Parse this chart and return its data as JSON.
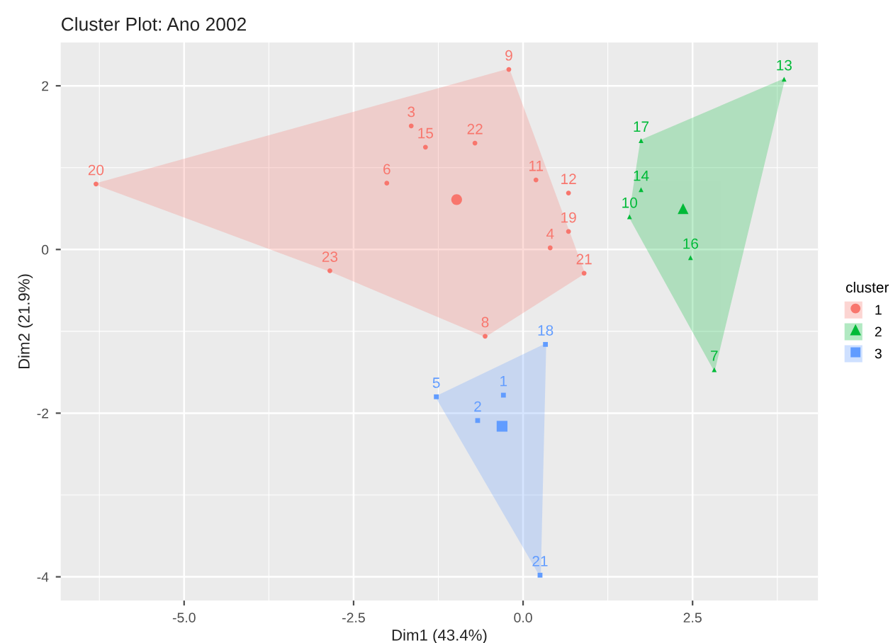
{
  "chart_data": {
    "type": "scatter",
    "title": "Cluster Plot: Ano 2002",
    "xlabel": "Dim1 (43.4%)",
    "ylabel": "Dim2 (21.9%)",
    "legend_title": "cluster",
    "legend": "right",
    "grid": true,
    "xlim": [
      -6.82,
      4.35
    ],
    "ylim": [
      -4.29,
      2.53
    ],
    "xticks": [
      {
        "value": -5,
        "label": "-5.0"
      },
      {
        "value": -2.5,
        "label": "-2.5"
      },
      {
        "value": 0,
        "label": "0.0"
      },
      {
        "value": 2.5,
        "label": "2.5"
      }
    ],
    "yticks": [
      -4,
      -2,
      0,
      2
    ],
    "series": [
      {
        "name": "1",
        "color": "#f8766d",
        "marker": "circle",
        "x": [
          -6.3,
          -2.85,
          -2.01,
          -1.65,
          -1.44,
          -0.71,
          -0.21,
          0.19,
          0.67,
          0.67,
          0.4,
          0.9,
          -0.56
        ],
        "values": [
          0.8,
          -0.26,
          0.81,
          1.51,
          1.25,
          1.3,
          2.2,
          0.85,
          0.69,
          0.22,
          0.02,
          -0.29,
          -1.06
        ]
      },
      {
        "name": "2",
        "color": "#00ba38",
        "marker": "triangle",
        "x": [
          1.74,
          3.85,
          1.74,
          1.57,
          2.47,
          2.82
        ],
        "values": [
          1.33,
          2.08,
          0.73,
          0.4,
          -0.1,
          -1.47
        ]
      },
      {
        "name": "3",
        "color": "#619cff",
        "marker": "square",
        "x": [
          0.33,
          -1.28,
          -0.29,
          -0.67,
          0.25
        ],
        "values": [
          -1.16,
          -1.8,
          -1.78,
          -2.09,
          -3.98
        ]
      },
      {
        "type": "area",
        "color": "#f8766d",
        "x": [
          -6.3,
          -0.21,
          0.9,
          -0.56,
          -2.85,
          -6.3
        ],
        "values": [
          0.8,
          2.2,
          -0.29,
          -1.06,
          -0.26,
          0.8
        ]
      },
      {
        "type": "area",
        "color": "#00ba38",
        "x": [
          1.74,
          3.85,
          2.82,
          1.57,
          1.74
        ],
        "values": [
          1.33,
          2.08,
          -1.47,
          0.4,
          1.33
        ]
      },
      {
        "type": "area",
        "color": "#619cff",
        "x": [
          0.33,
          0.25,
          -1.28,
          0.33
        ],
        "values": [
          -1.16,
          -3.98,
          -1.8,
          -1.16
        ]
      },
      {
        "color": "#f8766d",
        "marker": "circle",
        "x": [
          -0.98
        ],
        "values": [
          0.61
        ]
      },
      {
        "color": "#00ba38",
        "marker": "triangle",
        "x": [
          2.36
        ],
        "values": [
          0.5
        ]
      },
      {
        "color": "#619cff",
        "marker": "square",
        "x": [
          -0.31
        ],
        "values": [
          -2.16
        ]
      }
    ],
    "annotations": [
      {
        "text": "20",
        "x": -6.3,
        "y": 0.8
      },
      {
        "text": "23",
        "x": -2.85,
        "y": -0.26
      },
      {
        "text": "6",
        "x": -2.01,
        "y": 0.81
      },
      {
        "text": "3",
        "x": -1.65,
        "y": 1.51
      },
      {
        "text": "15",
        "x": -1.44,
        "y": 1.25
      },
      {
        "text": "22",
        "x": -0.71,
        "y": 1.3
      },
      {
        "text": "9",
        "x": -0.21,
        "y": 2.2
      },
      {
        "text": "11",
        "x": 0.19,
        "y": 0.85
      },
      {
        "text": "12",
        "x": 0.67,
        "y": 0.69
      },
      {
        "text": "19",
        "x": 0.67,
        "y": 0.22
      },
      {
        "text": "4",
        "x": 0.4,
        "y": 0.02
      },
      {
        "text": "21",
        "x": 0.9,
        "y": -0.29
      },
      {
        "text": "8",
        "x": -0.56,
        "y": -1.06
      },
      {
        "text": "17",
        "x": 1.74,
        "y": 1.33
      },
      {
        "text": "13",
        "x": 3.85,
        "y": 2.08
      },
      {
        "text": "14",
        "x": 1.74,
        "y": 0.73
      },
      {
        "text": "10",
        "x": 1.57,
        "y": 0.4
      },
      {
        "text": "16",
        "x": 2.47,
        "y": -0.1
      },
      {
        "text": "7",
        "x": 2.82,
        "y": -1.47
      },
      {
        "text": "18",
        "x": 0.33,
        "y": -1.16
      },
      {
        "text": "5",
        "x": -1.28,
        "y": -1.8
      },
      {
        "text": "1",
        "x": -0.29,
        "y": -1.78
      },
      {
        "text": "2",
        "x": -0.67,
        "y": -2.09
      },
      {
        "text": "21",
        "x": 0.25,
        "y": -3.98
      }
    ]
  }
}
